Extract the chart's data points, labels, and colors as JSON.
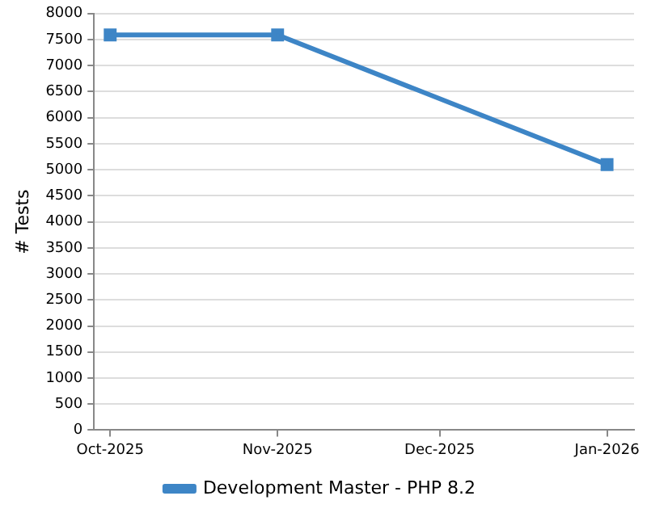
{
  "chart_data": {
    "type": "line",
    "ylabel": "# Tests",
    "x": [
      "2025-10-01",
      "2025-11-01",
      "2026-01-01"
    ],
    "series": [
      {
        "name": "Development Master - PHP 8.2",
        "color": "#3d85c6",
        "values": [
          7590,
          7590,
          5100
        ]
      }
    ],
    "xlim": [
      "2025-09-28",
      "2026-01-06"
    ],
    "xticks": [
      {
        "value": "2025-10-01",
        "label": "Oct-2025"
      },
      {
        "value": "2025-11-01",
        "label": "Nov-2025"
      },
      {
        "value": "2025-12-01",
        "label": "Dec-2025"
      },
      {
        "value": "2026-01-01",
        "label": "Jan-2026"
      }
    ],
    "ylim": [
      0,
      8000
    ],
    "yticks": [
      0,
      500,
      1000,
      1500,
      2000,
      2500,
      3000,
      3500,
      4000,
      4500,
      5000,
      5500,
      6000,
      6500,
      7000,
      7500,
      8000
    ],
    "grid": "y",
    "legend": "bottom",
    "marker": "square",
    "line_style": "solid"
  }
}
